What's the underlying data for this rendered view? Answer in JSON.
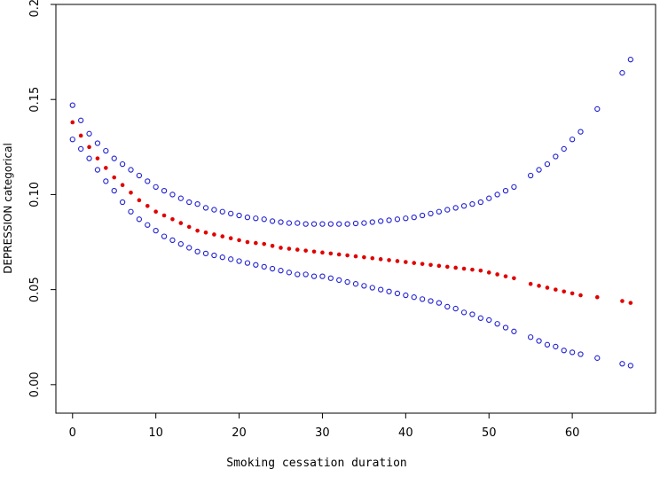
{
  "chart_data": {
    "type": "scatter",
    "xlabel": "Smoking cessation duration",
    "ylabel": "DEPRESSION categorical",
    "xlim": [
      -2,
      70
    ],
    "ylim": [
      -0.015,
      0.2
    ],
    "xticks": [
      0,
      10,
      20,
      30,
      40,
      50,
      60
    ],
    "yticks": [
      0.0,
      0.05,
      0.1,
      0.15,
      0.2
    ],
    "ytick_labels": [
      "0.00",
      "0.05",
      "0.10",
      "0.15",
      "0.20"
    ],
    "grid": false,
    "legend": "none",
    "colors": {
      "estimate": "#e00000",
      "ci": "#1f1fd0"
    },
    "x": [
      0,
      1,
      2,
      3,
      4,
      5,
      6,
      7,
      8,
      9,
      10,
      11,
      12,
      13,
      14,
      15,
      16,
      17,
      18,
      19,
      20,
      21,
      22,
      23,
      24,
      25,
      26,
      27,
      28,
      29,
      30,
      31,
      32,
      33,
      34,
      35,
      36,
      37,
      38,
      39,
      40,
      41,
      42,
      43,
      44,
      45,
      46,
      47,
      48,
      49,
      50,
      51,
      52,
      53,
      55,
      56,
      57,
      58,
      59,
      60,
      61,
      63,
      66,
      67
    ],
    "series": [
      {
        "style": "filled",
        "values": [
          0.138,
          0.131,
          0.125,
          0.119,
          0.114,
          0.109,
          0.105,
          0.101,
          0.097,
          0.094,
          0.091,
          0.089,
          0.087,
          0.085,
          0.083,
          0.081,
          0.08,
          0.079,
          0.078,
          0.077,
          0.076,
          0.075,
          0.0745,
          0.074,
          0.073,
          0.072,
          0.0715,
          0.071,
          0.0705,
          0.07,
          0.0695,
          0.069,
          0.0685,
          0.068,
          0.0675,
          0.067,
          0.0665,
          0.066,
          0.0655,
          0.065,
          0.0645,
          0.064,
          0.0635,
          0.063,
          0.0625,
          0.062,
          0.0615,
          0.061,
          0.0605,
          0.06,
          0.059,
          0.058,
          0.057,
          0.056,
          0.053,
          0.052,
          0.051,
          0.05,
          0.049,
          0.048,
          0.047,
          0.046,
          0.044,
          0.043
        ]
      },
      {
        "style": "open",
        "values": [
          0.147,
          0.139,
          0.132,
          0.127,
          0.123,
          0.119,
          0.116,
          0.113,
          0.11,
          0.107,
          0.104,
          0.102,
          0.1,
          0.098,
          0.096,
          0.095,
          0.093,
          0.092,
          0.091,
          0.09,
          0.089,
          0.088,
          0.0875,
          0.087,
          0.086,
          0.0855,
          0.085,
          0.085,
          0.0845,
          0.0845,
          0.0845,
          0.0845,
          0.0845,
          0.0845,
          0.0848,
          0.085,
          0.0855,
          0.086,
          0.0865,
          0.087,
          0.0875,
          0.088,
          0.089,
          0.09,
          0.091,
          0.092,
          0.093,
          0.094,
          0.095,
          0.096,
          0.098,
          0.1,
          0.102,
          0.104,
          0.11,
          0.113,
          0.116,
          0.12,
          0.124,
          0.129,
          0.133,
          0.145,
          0.164,
          0.171
        ]
      },
      {
        "style": "open",
        "values": [
          0.129,
          0.124,
          0.119,
          0.113,
          0.107,
          0.102,
          0.096,
          0.091,
          0.087,
          0.084,
          0.081,
          0.078,
          0.076,
          0.074,
          0.072,
          0.07,
          0.069,
          0.068,
          0.067,
          0.066,
          0.065,
          0.064,
          0.063,
          0.062,
          0.061,
          0.06,
          0.059,
          0.058,
          0.058,
          0.057,
          0.057,
          0.056,
          0.055,
          0.054,
          0.053,
          0.052,
          0.051,
          0.05,
          0.049,
          0.048,
          0.047,
          0.046,
          0.045,
          0.044,
          0.043,
          0.041,
          0.04,
          0.038,
          0.037,
          0.035,
          0.034,
          0.032,
          0.03,
          0.028,
          0.025,
          0.023,
          0.021,
          0.02,
          0.018,
          0.017,
          0.016,
          0.014,
          0.011,
          0.01
        ]
      }
    ]
  }
}
